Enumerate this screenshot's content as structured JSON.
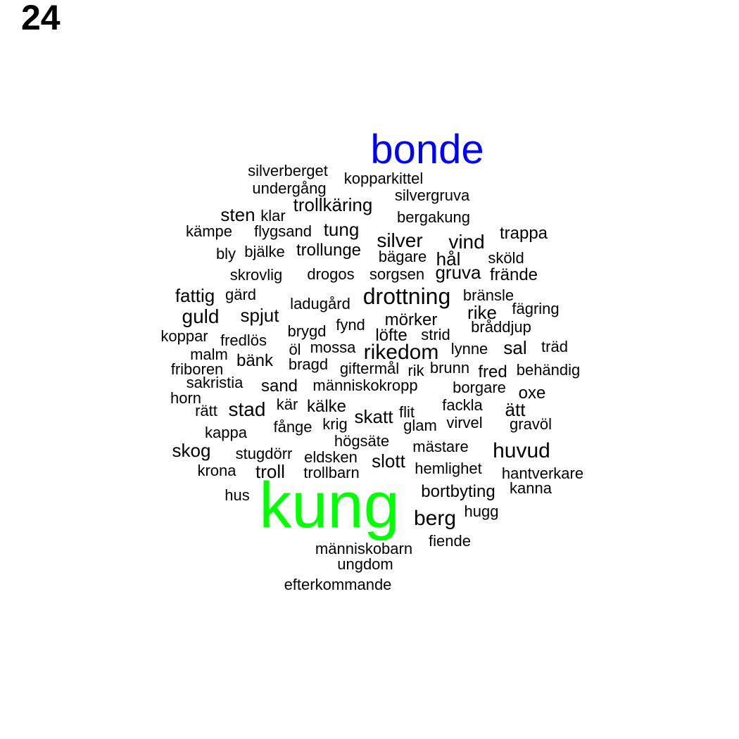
{
  "page_number": "24",
  "colors": {
    "default": "#000000",
    "bonde": "#0000ff",
    "kung": "#00ff00"
  },
  "words": [
    {
      "text": "bonde",
      "color": "#0000ff"
    },
    {
      "text": "kung",
      "color": "#00ff00"
    },
    {
      "text": "silverberget"
    },
    {
      "text": "kopparkittel"
    },
    {
      "text": "undergång"
    },
    {
      "text": "silvergruva"
    },
    {
      "text": "trollkäring"
    },
    {
      "text": "sten"
    },
    {
      "text": "klar"
    },
    {
      "text": "bergakung"
    },
    {
      "text": "kämpe"
    },
    {
      "text": "flygsand"
    },
    {
      "text": "tung"
    },
    {
      "text": "silver"
    },
    {
      "text": "vind"
    },
    {
      "text": "trappa"
    },
    {
      "text": "bly"
    },
    {
      "text": "bjälke"
    },
    {
      "text": "trollunge"
    },
    {
      "text": "bägare"
    },
    {
      "text": "hål"
    },
    {
      "text": "sköld"
    },
    {
      "text": "skrovlig"
    },
    {
      "text": "drogos"
    },
    {
      "text": "sorgsen"
    },
    {
      "text": "gruva"
    },
    {
      "text": "frände"
    },
    {
      "text": "fattig"
    },
    {
      "text": "gärd"
    },
    {
      "text": "ladugård"
    },
    {
      "text": "drottning"
    },
    {
      "text": "bränsle"
    },
    {
      "text": "fägring"
    },
    {
      "text": "guld"
    },
    {
      "text": "spjut"
    },
    {
      "text": "rike"
    },
    {
      "text": "mörker"
    },
    {
      "text": "bråddjup"
    },
    {
      "text": "koppar"
    },
    {
      "text": "fredlös"
    },
    {
      "text": "brygd"
    },
    {
      "text": "fynd"
    },
    {
      "text": "löfte"
    },
    {
      "text": "strid"
    },
    {
      "text": "malm"
    },
    {
      "text": "öl"
    },
    {
      "text": "mossa"
    },
    {
      "text": "rikedom"
    },
    {
      "text": "lynne"
    },
    {
      "text": "sal"
    },
    {
      "text": "träd"
    },
    {
      "text": "friboren"
    },
    {
      "text": "bänk"
    },
    {
      "text": "bragd"
    },
    {
      "text": "giftermål"
    },
    {
      "text": "rik"
    },
    {
      "text": "brunn"
    },
    {
      "text": "fred"
    },
    {
      "text": "behändig"
    },
    {
      "text": "sakristia"
    },
    {
      "text": "sand"
    },
    {
      "text": "människokropp"
    },
    {
      "text": "borgare"
    },
    {
      "text": "oxe"
    },
    {
      "text": "horn"
    },
    {
      "text": "rätt"
    },
    {
      "text": "stad"
    },
    {
      "text": "kär"
    },
    {
      "text": "kälke"
    },
    {
      "text": "skatt"
    },
    {
      "text": "flit"
    },
    {
      "text": "fackla"
    },
    {
      "text": "ätt"
    },
    {
      "text": "kappa"
    },
    {
      "text": "fånge"
    },
    {
      "text": "krig"
    },
    {
      "text": "glam"
    },
    {
      "text": "virvel"
    },
    {
      "text": "gravöl"
    },
    {
      "text": "högsäte"
    },
    {
      "text": "skog"
    },
    {
      "text": "stugdörr"
    },
    {
      "text": "eldsken"
    },
    {
      "text": "mästare"
    },
    {
      "text": "huvud"
    },
    {
      "text": "slott"
    },
    {
      "text": "krona"
    },
    {
      "text": "troll"
    },
    {
      "text": "trollbarn"
    },
    {
      "text": "hemlighet"
    },
    {
      "text": "hantverkare"
    },
    {
      "text": "bortbyting"
    },
    {
      "text": "kanna"
    },
    {
      "text": "hus"
    },
    {
      "text": "berg"
    },
    {
      "text": "hugg"
    },
    {
      "text": "fiende"
    },
    {
      "text": "människobarn"
    },
    {
      "text": "ungdom"
    },
    {
      "text": "efterkommande"
    }
  ]
}
